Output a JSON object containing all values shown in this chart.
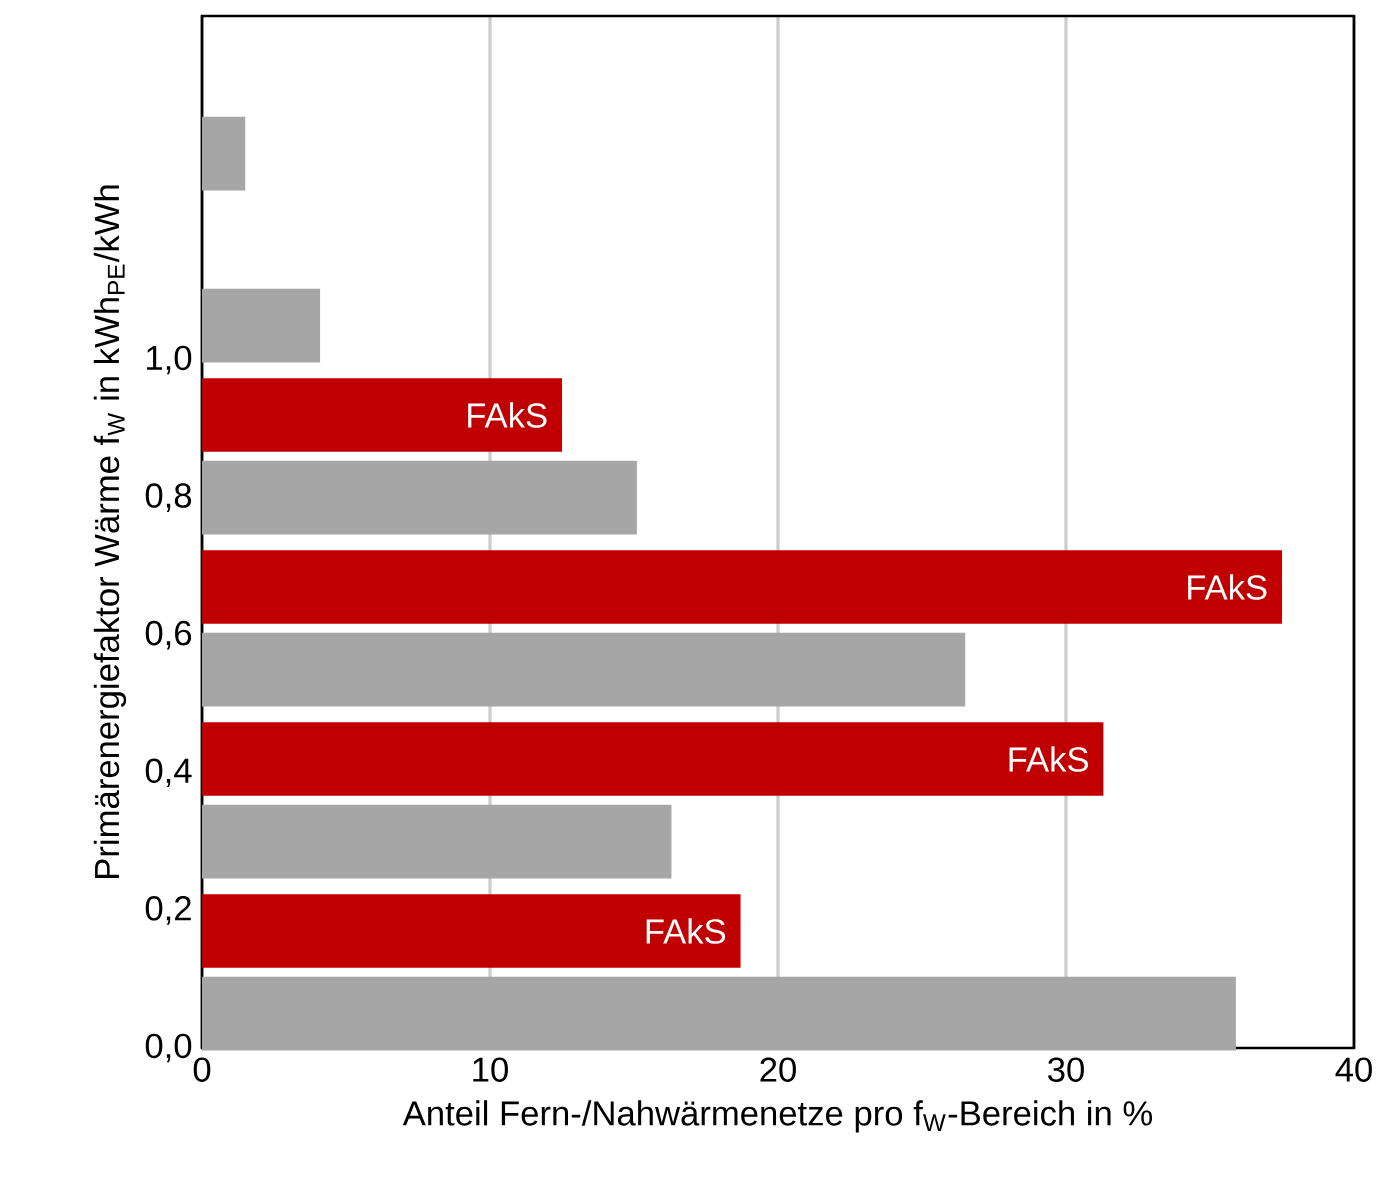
{
  "chart_data": {
    "type": "bar",
    "orientation": "horizontal",
    "xlabel": "Anteil Fern-/Nahwärmenetze pro f$_{W}$-Bereich in %",
    "ylabel": "Primärenergiefaktor Wärme f$_{W}$ in kWh$_{PE}$/kWh",
    "series": [
      {
        "color": "#a6a6a6",
        "x": [
          0.05,
          0.3,
          0.55,
          0.8,
          1.05,
          1.3
        ],
        "values": [
          35.9,
          16.3,
          26.5,
          15.1,
          4.1,
          1.5
        ]
      },
      {
        "color": "#c00000",
        "x": [
          0.17,
          0.42,
          0.67,
          0.92
        ],
        "values": [
          18.7,
          31.3,
          37.5,
          12.5
        ],
        "value_labels": [
          "FAkS",
          "FAkS",
          "FAkS",
          "FAkS"
        ]
      }
    ],
    "xlim": [
      0,
      40
    ],
    "xticks": [
      0,
      10,
      20,
      30,
      40
    ],
    "ylim": [
      0,
      1.5
    ],
    "yticks": [
      {
        "value": 0,
        "label": "0,0"
      },
      {
        "value": 0.2,
        "label": "0,2"
      },
      {
        "value": 0.4,
        "label": "0,4"
      },
      {
        "value": 0.6,
        "label": "0,6"
      },
      {
        "value": 0.8,
        "label": "0,8"
      },
      {
        "value": 1.0,
        "label": "1,0"
      }
    ],
    "grid": "x"
  }
}
